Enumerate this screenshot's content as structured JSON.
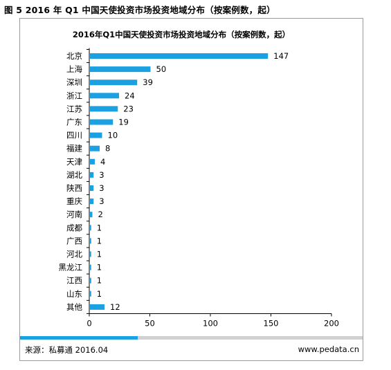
{
  "figure_title": "图 5 2016 年 Q1 中国天使投资市场投资地域分布（按案例数，起）",
  "footer": {
    "source": "来源：私募通 2016.04",
    "website": "www.pedata.cn"
  },
  "colors": {
    "bar": "#1ba1e2",
    "accent": "#1ba1e2",
    "footer_gray": "#d0d0d0"
  },
  "chart_data": {
    "type": "bar",
    "orientation": "horizontal",
    "title": "2016年Q1中国天使投资市场投资地域分布（按案例数，起）",
    "xlabel": "",
    "ylabel": "",
    "categories": [
      "北京",
      "上海",
      "深圳",
      "浙江",
      "江苏",
      "广东",
      "四川",
      "福建",
      "天津",
      "湖北",
      "陕西",
      "重庆",
      "河南",
      "成都",
      "广西",
      "河北",
      "黑龙江",
      "江西",
      "山东",
      "其他"
    ],
    "values": [
      147,
      50,
      39,
      24,
      23,
      19,
      10,
      8,
      4,
      3,
      3,
      3,
      2,
      1,
      1,
      1,
      1,
      1,
      1,
      12
    ],
    "xlim": [
      0,
      200
    ],
    "xticks": [
      0,
      50,
      100,
      150,
      200
    ],
    "grid": false,
    "data_labels": true
  }
}
